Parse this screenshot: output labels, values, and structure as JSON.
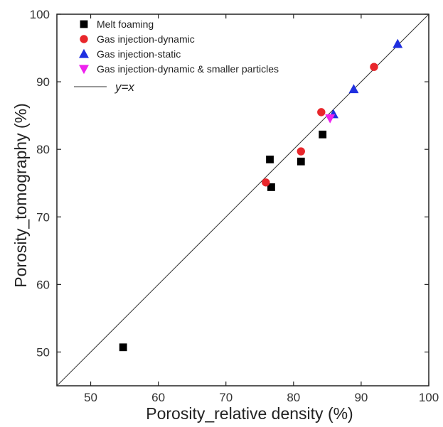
{
  "chart_data": {
    "type": "scatter",
    "title": "",
    "xlabel": "Porosity_relative density (%)",
    "ylabel": "Porosity_tomography (%)",
    "xlim": [
      45,
      100
    ],
    "ylim": [
      45,
      100
    ],
    "xticks": [
      50,
      60,
      70,
      80,
      90,
      100
    ],
    "yticks": [
      50,
      60,
      70,
      80,
      90,
      100
    ],
    "grid": false,
    "legend_position": "top-left",
    "series": [
      {
        "name": "Melt foaming",
        "marker": "square",
        "color": "#000000",
        "points": [
          {
            "x": 54.8,
            "y": 50.7
          },
          {
            "x": 76.5,
            "y": 78.5
          },
          {
            "x": 76.7,
            "y": 74.4
          },
          {
            "x": 81.1,
            "y": 78.2
          },
          {
            "x": 84.3,
            "y": 82.2
          }
        ]
      },
      {
        "name": "Gas injection-dynamic",
        "marker": "circle",
        "color": "#e8262b",
        "points": [
          {
            "x": 75.9,
            "y": 75.1
          },
          {
            "x": 81.1,
            "y": 79.7
          },
          {
            "x": 84.1,
            "y": 85.5
          },
          {
            "x": 91.9,
            "y": 92.2
          }
        ]
      },
      {
        "name": "Gas injection-static",
        "marker": "triangle-up",
        "color": "#1f2fe0",
        "points": [
          {
            "x": 85.9,
            "y": 85.2
          },
          {
            "x": 88.9,
            "y": 88.9
          },
          {
            "x": 95.4,
            "y": 95.6
          }
        ]
      },
      {
        "name": "Gas injection-dynamic & smaller particles",
        "marker": "triangle-down",
        "color": "#ee22ee",
        "points": [
          {
            "x": 85.4,
            "y": 84.6
          }
        ]
      }
    ],
    "reference_line": {
      "label": "y=x",
      "color": "#333333"
    }
  }
}
